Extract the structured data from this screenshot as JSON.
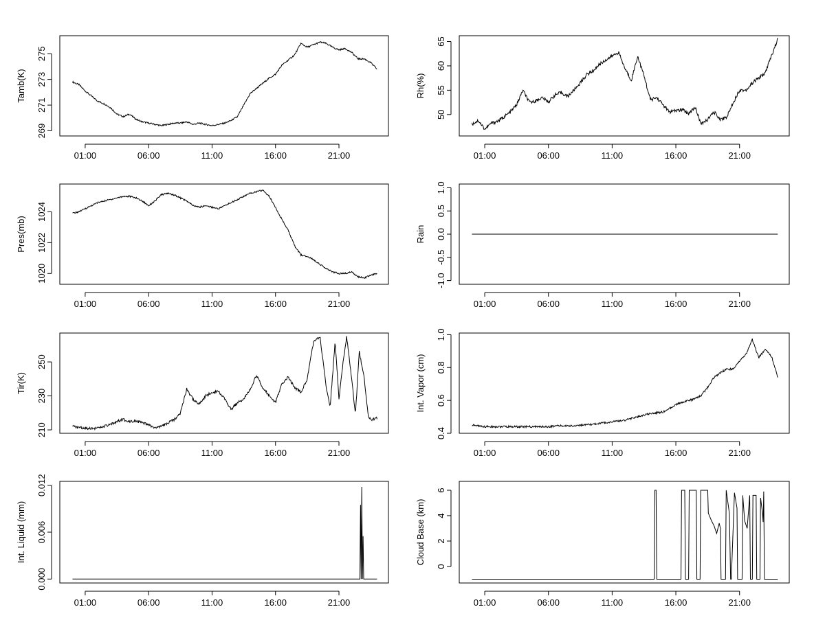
{
  "chart_data": [
    {
      "type": "line",
      "ylabel": "Tamb(K)",
      "x_ticks": [
        "01:00",
        "06:00",
        "11:00",
        "16:00",
        "21:00"
      ],
      "x_tick_hours": [
        1,
        6,
        11,
        16,
        21
      ],
      "xlim_hours": [
        -1,
        24.9
      ],
      "ylim": [
        268.6,
        276.4
      ],
      "y_ticks": [
        "269",
        "271",
        "273",
        "275"
      ],
      "y_tick_values": [
        269,
        271,
        273,
        275
      ],
      "series": [
        {
          "x_hours": [
            0.0,
            0.5,
            1.0,
            1.5,
            2.0,
            2.5,
            3.0,
            3.5,
            4.0,
            4.5,
            5.0,
            5.5,
            6.0,
            6.5,
            7.0,
            7.5,
            8.0,
            8.5,
            9.0,
            9.5,
            10.0,
            10.5,
            11.0,
            11.5,
            12.0,
            12.5,
            13.0,
            13.5,
            14.0,
            14.5,
            15.0,
            15.5,
            16.0,
            16.5,
            17.0,
            17.5,
            18.0,
            18.5,
            19.0,
            19.5,
            20.0,
            20.5,
            21.0,
            21.5,
            22.0,
            22.5,
            23.0,
            23.5,
            24.0
          ],
          "values": [
            272.8,
            272.6,
            272.1,
            271.7,
            271.3,
            271.1,
            270.8,
            270.3,
            270.1,
            270.3,
            269.9,
            269.7,
            269.6,
            269.5,
            269.4,
            269.5,
            269.6,
            269.6,
            269.7,
            269.5,
            269.6,
            269.5,
            269.4,
            269.5,
            269.6,
            269.8,
            270.1,
            271.0,
            271.9,
            272.3,
            272.7,
            273.1,
            273.4,
            274.1,
            274.5,
            274.9,
            275.8,
            275.5,
            275.7,
            275.9,
            275.8,
            275.5,
            275.3,
            275.4,
            275.1,
            274.6,
            274.6,
            274.3,
            273.8
          ]
        }
      ]
    },
    {
      "type": "line",
      "ylabel": "Rh(%)",
      "x_ticks": [
        "01:00",
        "06:00",
        "11:00",
        "16:00",
        "21:00"
      ],
      "x_tick_hours": [
        1,
        6,
        11,
        16,
        21
      ],
      "xlim_hours": [
        -1,
        24.9
      ],
      "ylim": [
        45.6,
        66.2
      ],
      "y_ticks": [
        "50",
        "55",
        "60",
        "65"
      ],
      "y_tick_values": [
        50,
        55,
        60,
        65
      ],
      "series": [
        {
          "x_hours": [
            0.0,
            0.5,
            1.0,
            1.5,
            2.0,
            2.5,
            3.0,
            3.5,
            4.0,
            4.5,
            5.0,
            5.5,
            6.0,
            6.5,
            7.0,
            7.5,
            8.0,
            8.5,
            9.0,
            9.5,
            10.0,
            10.5,
            11.0,
            11.5,
            12.0,
            12.5,
            13.0,
            13.5,
            14.0,
            14.5,
            15.0,
            15.5,
            16.0,
            16.5,
            17.0,
            17.5,
            18.0,
            18.5,
            19.0,
            19.5,
            20.0,
            20.5,
            21.0,
            21.5,
            22.0,
            22.5,
            23.0,
            23.5,
            24.0
          ],
          "values": [
            48.0,
            48.8,
            47.0,
            48.2,
            48.6,
            49.5,
            50.5,
            52.0,
            55.0,
            52.5,
            52.8,
            53.5,
            52.6,
            54.0,
            54.5,
            53.7,
            55.0,
            56.5,
            58.2,
            59.0,
            60.3,
            61.2,
            62.0,
            62.8,
            59.5,
            57.0,
            62.0,
            58.0,
            53.0,
            53.5,
            52.0,
            50.5,
            50.8,
            51.0,
            50.2,
            51.5,
            48.0,
            49.0,
            50.5,
            49.0,
            49.5,
            52.5,
            55.0,
            55.0,
            56.5,
            57.5,
            58.5,
            62.0,
            65.5
          ]
        }
      ]
    },
    {
      "type": "line",
      "ylabel": "Pres(mb)",
      "x_ticks": [
        "01:00",
        "06:00",
        "11:00",
        "16:00",
        "21:00"
      ],
      "x_tick_hours": [
        1,
        6,
        11,
        16,
        21
      ],
      "xlim_hours": [
        -1,
        24.9
      ],
      "ylim": [
        1019.3,
        1025.8
      ],
      "y_ticks": [
        "1020",
        "1022",
        "1024"
      ],
      "y_tick_values": [
        1020,
        1022,
        1024
      ],
      "series": [
        {
          "x_hours": [
            0.0,
            0.5,
            1.0,
            1.5,
            2.0,
            2.5,
            3.0,
            3.5,
            4.0,
            4.5,
            5.0,
            5.5,
            6.0,
            6.5,
            7.0,
            7.5,
            8.0,
            8.5,
            9.0,
            9.5,
            10.0,
            10.5,
            11.0,
            11.5,
            12.0,
            12.5,
            13.0,
            13.5,
            14.0,
            14.5,
            15.0,
            15.5,
            16.0,
            16.5,
            17.0,
            17.5,
            18.0,
            18.5,
            19.0,
            19.5,
            20.0,
            20.5,
            21.0,
            21.5,
            22.0,
            22.5,
            23.0,
            23.5,
            24.0
          ],
          "values": [
            1023.9,
            1024.0,
            1024.2,
            1024.4,
            1024.6,
            1024.7,
            1024.8,
            1024.9,
            1025.0,
            1025.0,
            1024.9,
            1024.7,
            1024.4,
            1024.7,
            1025.1,
            1025.2,
            1025.1,
            1024.9,
            1024.7,
            1024.4,
            1024.3,
            1024.4,
            1024.3,
            1024.2,
            1024.4,
            1024.6,
            1024.8,
            1025.0,
            1025.2,
            1025.3,
            1025.4,
            1025.0,
            1024.3,
            1023.5,
            1022.8,
            1021.8,
            1021.2,
            1021.1,
            1020.9,
            1020.6,
            1020.3,
            1020.1,
            1020.0,
            1020.0,
            1020.1,
            1019.8,
            1019.7,
            1019.9,
            1020.0
          ]
        }
      ]
    },
    {
      "type": "line",
      "ylabel": "Rain",
      "x_ticks": [
        "01:00",
        "06:00",
        "11:00",
        "16:00",
        "21:00"
      ],
      "x_tick_hours": [
        1,
        6,
        11,
        16,
        21
      ],
      "xlim_hours": [
        -1,
        24.9
      ],
      "ylim": [
        -1.08,
        1.08
      ],
      "y_ticks": [
        "-1.0",
        "-0.5",
        "0.0",
        "0.5",
        "1.0"
      ],
      "y_tick_values": [
        -1.0,
        -0.5,
        0.0,
        0.5,
        1.0
      ],
      "series": [
        {
          "x_hours": [
            0.0,
            24.0
          ],
          "values": [
            0.0,
            0.0
          ]
        }
      ]
    },
    {
      "type": "line",
      "ylabel": "Tir(K)",
      "x_ticks": [
        "01:00",
        "06:00",
        "11:00",
        "16:00",
        "21:00"
      ],
      "x_tick_hours": [
        1,
        6,
        11,
        16,
        21
      ],
      "xlim_hours": [
        -1,
        24.9
      ],
      "ylim": [
        208.0,
        267.0
      ],
      "y_ticks": [
        "210",
        "230",
        "250"
      ],
      "y_tick_values": [
        210,
        230,
        250
      ],
      "series": [
        {
          "x_hours": [
            0.0,
            0.5,
            1.0,
            1.5,
            2.0,
            2.5,
            3.0,
            3.5,
            4.0,
            4.5,
            5.0,
            5.5,
            6.0,
            6.5,
            7.0,
            7.5,
            8.0,
            8.5,
            9.0,
            9.5,
            10.0,
            10.5,
            11.0,
            11.5,
            12.0,
            12.5,
            13.0,
            13.5,
            14.0,
            14.5,
            15.0,
            15.5,
            16.0,
            16.5,
            17.0,
            17.5,
            18.0,
            18.5,
            19.0,
            19.5,
            20.0,
            20.3,
            20.7,
            21.0,
            21.3,
            21.6,
            22.0,
            22.3,
            22.6,
            23.0,
            23.3,
            23.6,
            24.0
          ],
          "values": [
            212.0,
            211.5,
            211.0,
            211.0,
            211.0,
            212.0,
            213.0,
            215.0,
            216.0,
            215.0,
            215.5,
            214.0,
            213.0,
            211.0,
            212.0,
            214.0,
            216.0,
            220.0,
            234.0,
            228.0,
            225.0,
            230.0,
            232.0,
            233.0,
            228.0,
            222.0,
            226.0,
            228.0,
            234.0,
            242.0,
            235.0,
            230.0,
            226.0,
            237.0,
            241.0,
            235.0,
            232.0,
            240.0,
            262.0,
            265.0,
            235.0,
            223.0,
            262.0,
            228.0,
            248.0,
            265.0,
            240.0,
            219.0,
            256.0,
            240.0,
            218.0,
            216.0,
            217.0
          ]
        }
      ]
    },
    {
      "type": "line",
      "ylabel": "Int. Vapor (cm)",
      "x_ticks": [
        "01:00",
        "06:00",
        "11:00",
        "16:00",
        "21:00"
      ],
      "x_tick_hours": [
        1,
        6,
        11,
        16,
        21
      ],
      "xlim_hours": [
        -1,
        24.9
      ],
      "ylim": [
        0.4,
        1.01
      ],
      "y_ticks": [
        "0.4",
        "0.6",
        "0.8",
        "1.0"
      ],
      "y_tick_values": [
        0.4,
        0.6,
        0.8,
        1.0
      ],
      "series": [
        {
          "x_hours": [
            0.0,
            0.5,
            1.0,
            1.5,
            2.0,
            2.5,
            3.0,
            3.5,
            4.0,
            4.5,
            5.0,
            5.5,
            6.0,
            6.5,
            7.0,
            7.5,
            8.0,
            8.5,
            9.0,
            9.5,
            10.0,
            10.5,
            11.0,
            11.5,
            12.0,
            12.5,
            13.0,
            13.5,
            14.0,
            14.5,
            15.0,
            15.5,
            16.0,
            16.5,
            17.0,
            17.5,
            18.0,
            18.5,
            19.0,
            19.5,
            20.0,
            20.5,
            21.0,
            21.5,
            22.0,
            22.5,
            23.0,
            23.5,
            24.0
          ],
          "values": [
            0.45,
            0.445,
            0.44,
            0.44,
            0.44,
            0.44,
            0.44,
            0.44,
            0.44,
            0.44,
            0.44,
            0.44,
            0.44,
            0.445,
            0.445,
            0.445,
            0.445,
            0.45,
            0.45,
            0.455,
            0.46,
            0.465,
            0.47,
            0.475,
            0.48,
            0.49,
            0.5,
            0.51,
            0.52,
            0.525,
            0.53,
            0.55,
            0.575,
            0.59,
            0.6,
            0.61,
            0.63,
            0.68,
            0.74,
            0.77,
            0.79,
            0.79,
            0.84,
            0.88,
            0.97,
            0.86,
            0.91,
            0.87,
            0.74
          ]
        }
      ]
    },
    {
      "type": "line",
      "ylabel": "Int. Liquid (mm)",
      "x_ticks": [
        "01:00",
        "06:00",
        "11:00",
        "16:00",
        "21:00"
      ],
      "x_tick_hours": [
        1,
        6,
        11,
        16,
        21
      ],
      "xlim_hours": [
        -1,
        24.9
      ],
      "ylim": [
        -0.0005,
        0.0125
      ],
      "y_ticks": [
        "0.000",
        "0.006",
        "0.012"
      ],
      "y_tick_values": [
        0.0,
        0.006,
        0.012
      ],
      "series": [
        {
          "x_hours": [
            0.0,
            22.65,
            22.7,
            22.75,
            22.8,
            22.85,
            22.9,
            22.95,
            23.0,
            24.0
          ],
          "values": [
            0.0,
            0.0,
            0.0095,
            0.0,
            0.0118,
            0.0,
            0.0055,
            0.0,
            0.0,
            0.0
          ]
        }
      ]
    },
    {
      "type": "line",
      "ylabel": "Cloud Base (km)",
      "x_ticks": [
        "01:00",
        "06:00",
        "11:00",
        "16:00",
        "21:00"
      ],
      "x_tick_hours": [
        1,
        6,
        11,
        16,
        21
      ],
      "xlim_hours": [
        -1,
        24.9
      ],
      "ylim": [
        -1.3,
        6.7
      ],
      "y_ticks": [
        "0",
        "2",
        "4",
        "6"
      ],
      "y_tick_values": [
        0,
        2,
        4,
        6
      ],
      "series": [
        {
          "x_hours": [
            0.0,
            14.3,
            14.35,
            14.45,
            14.5,
            16.4,
            16.45,
            16.7,
            16.75,
            17.0,
            17.05,
            17.6,
            17.65,
            17.9,
            17.95,
            18.5,
            18.55,
            18.8,
            19.0,
            19.2,
            19.4,
            19.5,
            19.55,
            19.9,
            19.95,
            20.2,
            20.3,
            20.35,
            20.6,
            20.8,
            20.85,
            21.2,
            21.25,
            21.4,
            21.6,
            21.8,
            21.85,
            22.0,
            22.05,
            22.3,
            22.35,
            22.6,
            22.65,
            22.8,
            22.85,
            22.9,
            22.95,
            23.0,
            24.0
          ],
          "values": [
            -1.0,
            -1.0,
            6.0,
            6.0,
            -1.0,
            -1.0,
            6.0,
            6.0,
            -1.0,
            -1.0,
            6.0,
            6.0,
            -1.0,
            -1.0,
            6.0,
            6.0,
            4.2,
            3.6,
            3.2,
            2.6,
            3.4,
            3.0,
            -1.0,
            -1.0,
            6.0,
            4.2,
            -1.0,
            -1.0,
            5.8,
            4.6,
            -1.0,
            -1.0,
            5.6,
            3.6,
            3.0,
            5.6,
            -1.0,
            -1.0,
            5.6,
            5.6,
            -1.0,
            -1.0,
            5.4,
            4.2,
            3.5,
            5.9,
            -1.0,
            -1.0,
            -1.0
          ]
        }
      ]
    }
  ]
}
